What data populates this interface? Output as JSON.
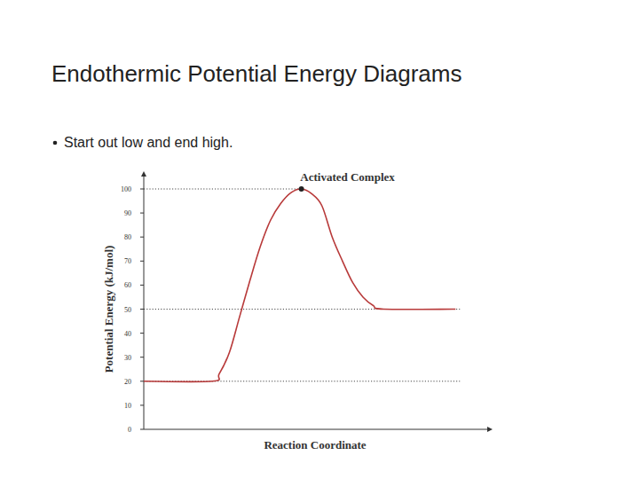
{
  "header": {
    "title": "Endothermic Potential Energy Diagrams",
    "bullets": [
      "Start out low and end high."
    ]
  },
  "chart_data": {
    "type": "line",
    "x": [
      0,
      20,
      22,
      25,
      28,
      31,
      34,
      37,
      40,
      43,
      46,
      49,
      52,
      55,
      58,
      61,
      64,
      67,
      70,
      91
    ],
    "values": [
      20,
      20,
      23,
      32,
      47,
      62,
      76,
      87,
      94,
      98.5,
      100,
      98,
      93,
      80,
      70,
      61,
      55,
      51.5,
      50,
      50
    ],
    "color": "#b83a3a",
    "xlim": [
      0,
      100
    ],
    "ylim": [
      0,
      100
    ],
    "yticks": [
      0,
      10,
      20,
      30,
      40,
      50,
      60,
      70,
      80,
      90,
      100
    ],
    "tick_labels": "y",
    "x_label": "Reaction Coordinate",
    "y_label": "Potential Energy (kJ/mol)",
    "reference_lines": [
      100,
      50,
      20
    ],
    "annotations": [
      {
        "text": "Activated Complex",
        "x": 46,
        "y": 100
      }
    ]
  }
}
